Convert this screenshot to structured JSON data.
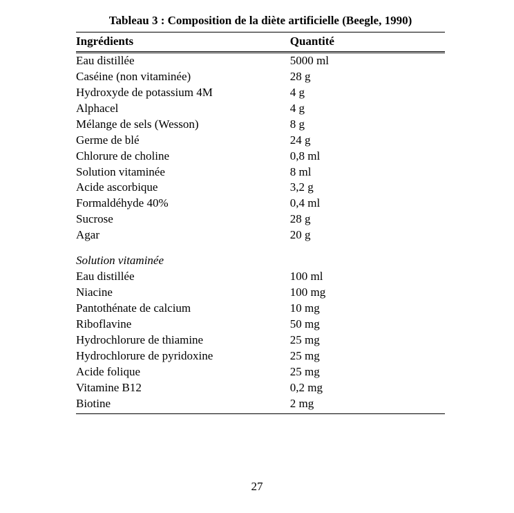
{
  "caption": "Tableau 3 : Composition de la diète artificielle (Beegle, 1990)",
  "headers": {
    "ingredient": "Ingrédients",
    "quantity": "Quantité"
  },
  "sections": [
    {
      "title": null,
      "rows": [
        {
          "ingredient": "Eau distillée",
          "quantity": "5000 ml"
        },
        {
          "ingredient": "Caséine (non vitaminée)",
          "quantity": "28 g"
        },
        {
          "ingredient": "Hydroxyde de potassium 4M",
          "quantity": "4 g"
        },
        {
          "ingredient": "Alphacel",
          "quantity": "4 g"
        },
        {
          "ingredient": "Mélange de sels (Wesson)",
          "quantity": "8 g"
        },
        {
          "ingredient": "Germe de blé",
          "quantity": "24 g"
        },
        {
          "ingredient": "Chlorure de choline",
          "quantity": "0,8 ml"
        },
        {
          "ingredient": "Solution vitaminée",
          "quantity": "8 ml"
        },
        {
          "ingredient": "Acide ascorbique",
          "quantity": "3,2 g"
        },
        {
          "ingredient": "Formaldéhyde 40%",
          "quantity": "0,4 ml"
        },
        {
          "ingredient": "Sucrose",
          "quantity": "28 g"
        },
        {
          "ingredient": "Agar",
          "quantity": "20 g"
        }
      ]
    },
    {
      "title": "Solution vitaminée",
      "rows": [
        {
          "ingredient": "Eau distillée",
          "quantity": "100 ml"
        },
        {
          "ingredient": "Niacine",
          "quantity": "100 mg"
        },
        {
          "ingredient": "Pantothénate de calcium",
          "quantity": "10 mg"
        },
        {
          "ingredient": "Riboflavine",
          "quantity": "50 mg"
        },
        {
          "ingredient": "Hydrochlorure de thiamine",
          "quantity": "25 mg"
        },
        {
          "ingredient": "Hydrochlorure de pyridoxine",
          "quantity": "25 mg"
        },
        {
          "ingredient": "Acide folique",
          "quantity": "25 mg"
        },
        {
          "ingredient": "Vitamine B12",
          "quantity": "0,2 mg"
        },
        {
          "ingredient": "Biotine",
          "quantity": "2 mg"
        }
      ]
    }
  ],
  "pageNumber": "27"
}
